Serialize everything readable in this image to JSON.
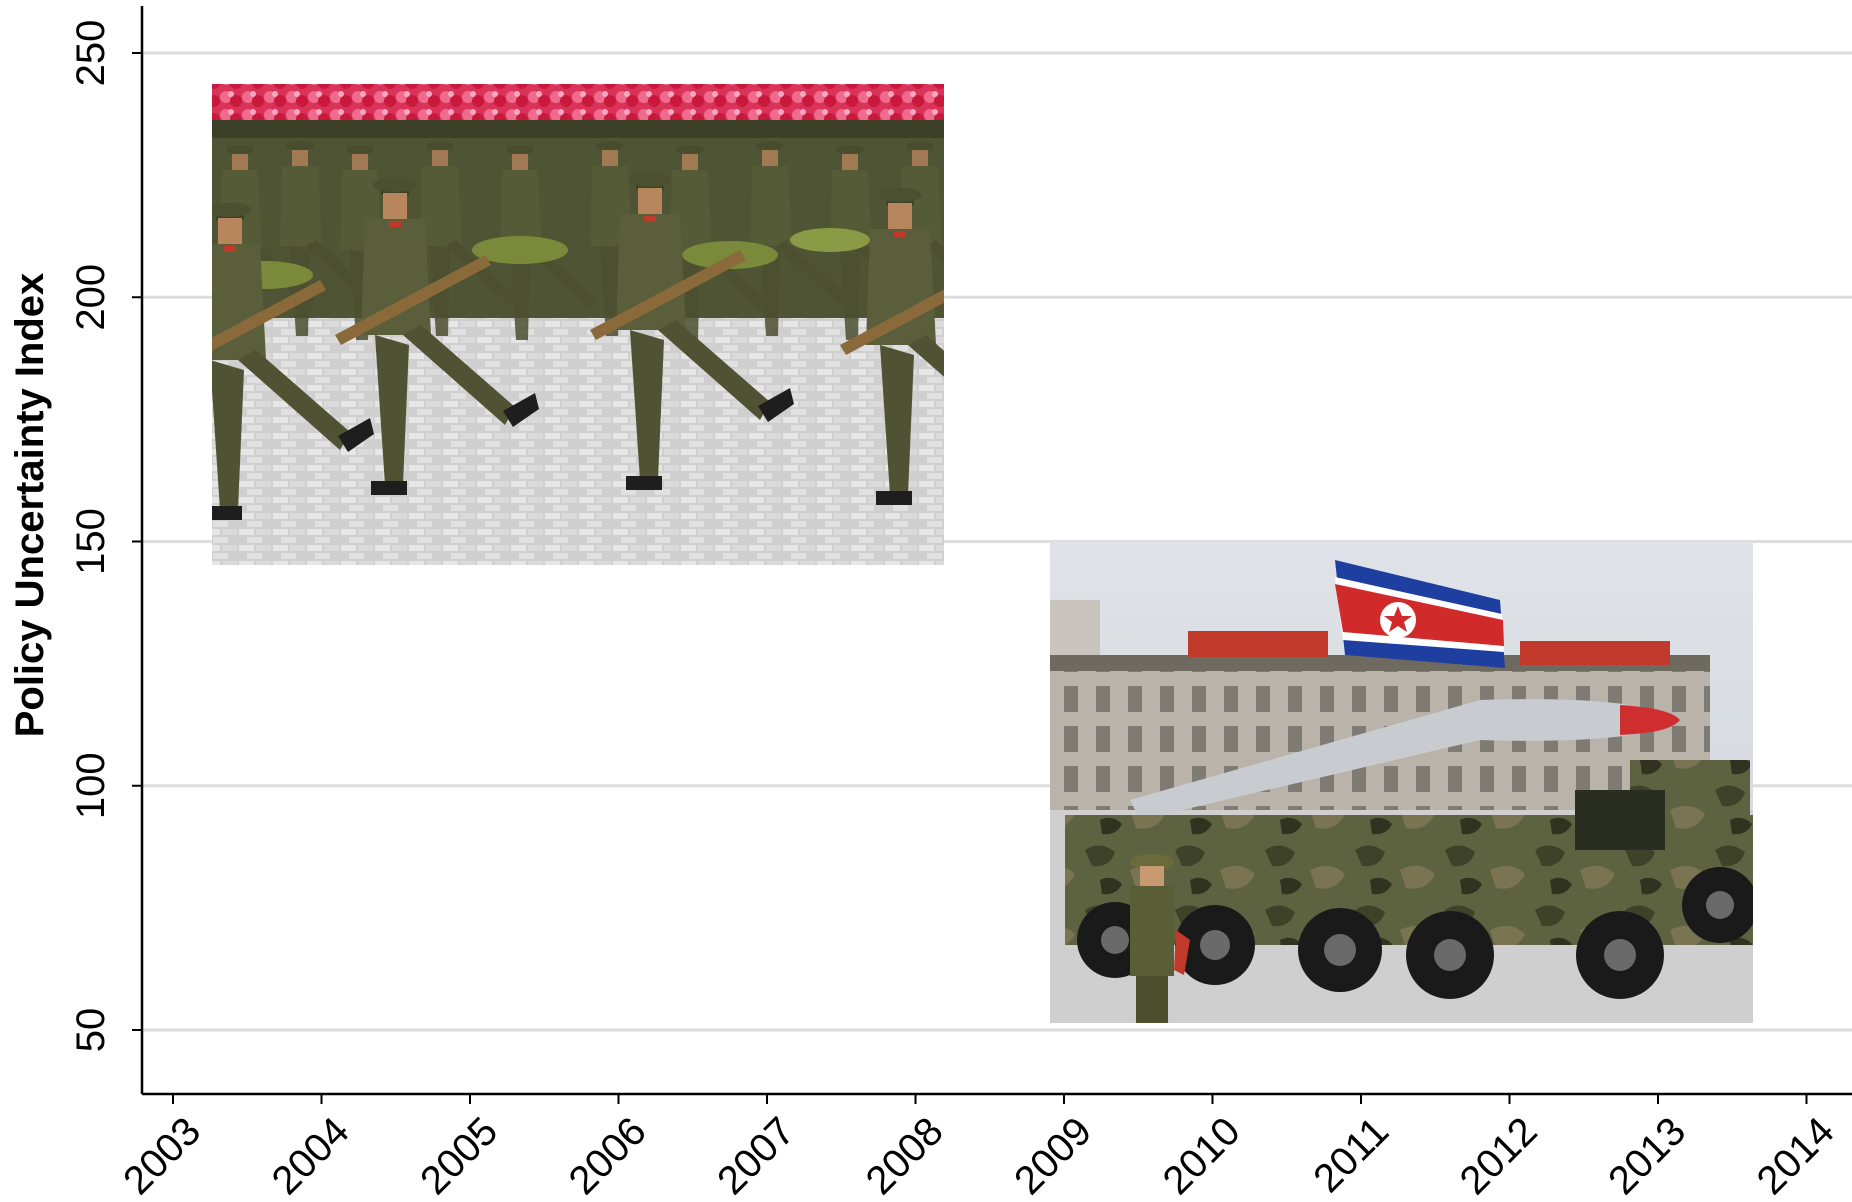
{
  "chart_data": {
    "type": "line",
    "title": "",
    "xlabel": "",
    "ylabel": "Policy Uncertainty Index",
    "x_ticks": [
      "2003",
      "2004",
      "2005",
      "2006",
      "2007",
      "2008",
      "2009",
      "2010",
      "2011",
      "2012",
      "2013",
      "2014"
    ],
    "y_ticks": [
      "50",
      "100",
      "150",
      "200",
      "250"
    ],
    "xlim": [
      2003,
      2014
    ],
    "ylim": [
      35,
      259
    ],
    "grid": "horizontal",
    "series": [],
    "images": [
      {
        "icon": "soldiers-marching-parade-photo",
        "x_range": [
          2003.3,
          2008.3
        ],
        "y_range": [
          143,
          242
        ]
      },
      {
        "icon": "missile-launcher-truck-photo",
        "x_range": [
          2009.0,
          2013.8
        ],
        "y_range": [
          49,
          148
        ]
      }
    ],
    "colors": {
      "grid": "#dddddd",
      "axis": "#000000",
      "text": "#000000"
    }
  }
}
